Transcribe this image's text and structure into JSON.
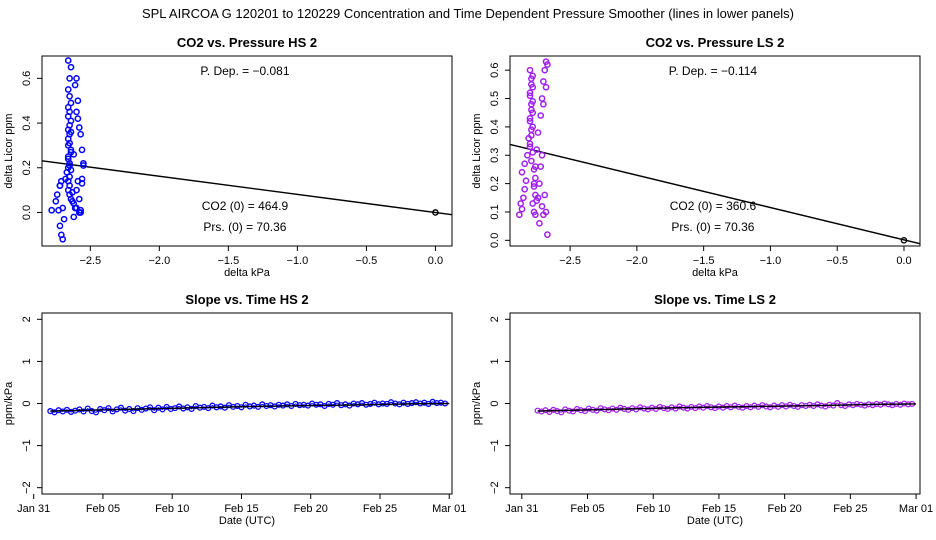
{
  "page": {
    "title": "SPL    AIRCOA G    120201 to 120229    Concentration and Time Dependent Pressure Smoother (lines in lower panels)"
  },
  "colors": {
    "hs": "#0000ff",
    "ls": "#a020f0",
    "fit_line": "#000000"
  },
  "chart_data": [
    {
      "id": "co2-vs-pressure-hs",
      "type": "scatter",
      "title": "CO2 vs. Pressure HS 2",
      "xlabel": "delta kPa",
      "ylabel": "delta Licor ppm",
      "xlim": [
        -2.85,
        0.12
      ],
      "ylim": [
        -0.15,
        0.7
      ],
      "xticks": [
        -2.5,
        -2.0,
        -1.5,
        -1.0,
        -0.5,
        0.0
      ],
      "xtick_labels": [
        "−2.5",
        "−2.0",
        "−1.5",
        "−1.0",
        "−0.5",
        "0.0"
      ],
      "yticks": [
        0.0,
        0.2,
        0.4,
        0.6
      ],
      "ytick_labels": [
        "0.0",
        "0.2",
        "0.4",
        "0.6"
      ],
      "annotations": {
        "p_dep": "P. Dep. =  −0.081",
        "co2_0": "CO2 (0) =  464.9",
        "prs_0": "Prs. (0) =  70.36"
      },
      "fit_line": {
        "x": [
          -2.85,
          0.12
        ],
        "y": [
          0.231,
          -0.01
        ]
      },
      "reference_point": {
        "x": 0.0,
        "y": 0.0
      },
      "color_key": "hs",
      "points": {
        "x": [
          -2.7,
          -2.71,
          -2.72,
          -2.69,
          -2.73,
          -2.7,
          -2.72,
          -2.68,
          -2.67,
          -2.66,
          -2.65,
          -2.66,
          -2.64,
          -2.66,
          -2.66,
          -2.65,
          -2.66,
          -2.65,
          -2.64,
          -2.66,
          -2.65,
          -2.66,
          -2.64,
          -2.65,
          -2.66,
          -2.65,
          -2.64,
          -2.66,
          -2.65,
          -2.66,
          -2.65,
          -2.64,
          -2.63,
          -2.66,
          -2.65,
          -2.64,
          -2.65,
          -2.66,
          -2.64,
          -2.65,
          -2.6,
          -2.61,
          -2.59,
          -2.6,
          -2.59,
          -2.58,
          -2.57,
          -2.56,
          -2.55,
          -2.59,
          -2.6,
          -2.58,
          -2.6,
          -2.57,
          -2.56,
          -2.78,
          -2.75,
          -2.74,
          -2.72,
          -2.71,
          -2.62,
          -2.61,
          -2.58,
          -2.57,
          -2.56,
          -2.55,
          -2.63,
          -2.62,
          -2.64,
          -2.62
        ],
        "y": [
          -0.12,
          -0.1,
          -0.06,
          -0.03,
          0.01,
          0.02,
          0.12,
          0.15,
          0.18,
          0.2,
          0.22,
          0.25,
          0.28,
          0.3,
          0.33,
          0.35,
          0.37,
          0.39,
          0.41,
          0.43,
          0.45,
          0.47,
          0.49,
          0.52,
          0.55,
          0.6,
          0.65,
          0.68,
          0.12,
          0.1,
          0.08,
          0.06,
          0.05,
          0.14,
          0.16,
          0.19,
          0.21,
          0.24,
          0.27,
          0.31,
          0.6,
          0.57,
          0.5,
          0.45,
          0.42,
          0.38,
          0.35,
          0.28,
          0.22,
          0.14,
          0.1,
          0.06,
          0.02,
          0.0,
          0.13,
          0.01,
          0.05,
          0.08,
          0.12,
          0.14,
          0.04,
          0.02,
          0.0,
          0.01,
          0.15,
          0.21,
          0.09,
          -0.02,
          0.36,
          0.26
        ]
      }
    },
    {
      "id": "co2-vs-pressure-ls",
      "type": "scatter",
      "title": "CO2 vs. Pressure LS 2",
      "xlabel": "delta kPa",
      "ylabel": "delta Licor ppm",
      "xlim": [
        -2.95,
        0.12
      ],
      "ylim": [
        -0.02,
        0.65
      ],
      "xticks": [
        -2.5,
        -2.0,
        -1.5,
        -1.0,
        -0.5,
        0.0
      ],
      "xtick_labels": [
        "−2.5",
        "−2.0",
        "−1.5",
        "−1.0",
        "−0.5",
        "0.0"
      ],
      "yticks": [
        0.0,
        0.1,
        0.2,
        0.3,
        0.4,
        0.5,
        0.6
      ],
      "ytick_labels": [
        "0.0",
        "0.1",
        "0.2",
        "0.3",
        "0.4",
        "0.5",
        "0.6"
      ],
      "annotations": {
        "p_dep": "P. Dep. =  −0.114",
        "co2_0": "CO2 (0) =  360.6",
        "prs_0": "Prs. (0) =  70.36"
      },
      "fit_line": {
        "x": [
          -2.95,
          0.12
        ],
        "y": [
          0.338,
          -0.012
        ]
      },
      "reference_point": {
        "x": 0.0,
        "y": 0.0
      },
      "color_key": "ls",
      "points": {
        "x": [
          -2.88,
          -2.86,
          -2.87,
          -2.85,
          -2.84,
          -2.83,
          -2.86,
          -2.84,
          -2.82,
          -2.8,
          -2.81,
          -2.79,
          -2.8,
          -2.78,
          -2.79,
          -2.8,
          -2.78,
          -2.79,
          -2.8,
          -2.78,
          -2.79,
          -2.8,
          -2.78,
          -2.79,
          -2.8,
          -2.78,
          -2.79,
          -2.8,
          -2.78,
          -2.79,
          -2.77,
          -2.76,
          -2.77,
          -2.76,
          -2.78,
          -2.77,
          -2.76,
          -2.75,
          -2.77,
          -2.76,
          -2.75,
          -2.74,
          -2.72,
          -2.71,
          -2.7,
          -2.69,
          -2.68,
          -2.67,
          -2.68,
          -2.7,
          -2.71,
          -2.72,
          -2.73,
          -2.74,
          -2.71,
          -2.7,
          -2.69,
          -2.68,
          -2.67,
          -2.73
        ],
        "y": [
          0.09,
          0.11,
          0.13,
          0.15,
          0.18,
          0.21,
          0.24,
          0.27,
          0.3,
          0.33,
          0.36,
          0.39,
          0.42,
          0.45,
          0.48,
          0.51,
          0.54,
          0.57,
          0.6,
          0.58,
          0.55,
          0.52,
          0.49,
          0.46,
          0.43,
          0.4,
          0.37,
          0.34,
          0.31,
          0.28,
          0.25,
          0.22,
          0.19,
          0.16,
          0.13,
          0.1,
          0.09,
          0.14,
          0.2,
          0.26,
          0.32,
          0.38,
          0.44,
          0.5,
          0.56,
          0.6,
          0.63,
          0.62,
          0.54,
          0.48,
          0.3,
          0.26,
          0.2,
          0.15,
          0.12,
          0.09,
          0.16,
          0.1,
          0.02,
          0.06
        ]
      }
    },
    {
      "id": "slope-vs-time-hs",
      "type": "line",
      "title": "Slope vs. Time HS 2",
      "xlabel": "Date (UTC)",
      "ylabel": "ppm/kPa",
      "xlim": [
        0.6,
        30.2
      ],
      "ylim": [
        -2.15,
        2.15
      ],
      "xticks": [
        0,
        5,
        10,
        15,
        20,
        25,
        30
      ],
      "xtick_labels": [
        "Jan 31",
        "Feb 05",
        "Feb 10",
        "Feb 15",
        "Feb 20",
        "Feb 25",
        "Mar 01"
      ],
      "yticks": [
        -2,
        -1,
        0,
        1,
        2
      ],
      "ytick_labels": [
        "−2",
        "−1",
        "0",
        "1",
        "2"
      ],
      "color_key": "hs",
      "smoother": {
        "x": [
          1.2,
          4,
          8,
          12,
          16,
          20,
          24,
          27,
          30
        ],
        "y": [
          -0.18,
          -0.16,
          -0.13,
          -0.1,
          -0.07,
          -0.05,
          -0.03,
          -0.01,
          0.0
        ]
      },
      "points": {
        "x": [
          1.2,
          1.5,
          1.8,
          2.1,
          2.4,
          2.7,
          3.0,
          3.3,
          3.6,
          3.9,
          4.2,
          4.5,
          4.8,
          5.1,
          5.4,
          5.7,
          6.0,
          6.3,
          6.6,
          6.9,
          7.2,
          7.5,
          7.8,
          8.1,
          8.4,
          8.7,
          9.0,
          9.3,
          9.6,
          9.9,
          10.2,
          10.5,
          10.8,
          11.1,
          11.4,
          11.7,
          12.0,
          12.3,
          12.6,
          12.9,
          13.2,
          13.5,
          13.8,
          14.1,
          14.4,
          14.7,
          15.0,
          15.3,
          15.6,
          15.9,
          16.2,
          16.5,
          16.8,
          17.1,
          17.4,
          17.7,
          18.0,
          18.3,
          18.6,
          18.9,
          19.2,
          19.5,
          19.8,
          20.1,
          20.4,
          20.7,
          21.0,
          21.3,
          21.6,
          21.9,
          22.2,
          22.5,
          22.8,
          23.1,
          23.4,
          23.7,
          24.0,
          24.3,
          24.6,
          24.9,
          25.2,
          25.5,
          25.8,
          26.1,
          26.4,
          26.7,
          27.0,
          27.3,
          27.6,
          27.9,
          28.2,
          28.5,
          28.8,
          29.1,
          29.4,
          29.7
        ],
        "y": [
          -0.18,
          -0.21,
          -0.16,
          -0.19,
          -0.15,
          -0.2,
          -0.17,
          -0.14,
          -0.19,
          -0.12,
          -0.18,
          -0.21,
          -0.13,
          -0.16,
          -0.11,
          -0.19,
          -0.14,
          -0.1,
          -0.17,
          -0.13,
          -0.18,
          -0.11,
          -0.15,
          -0.12,
          -0.09,
          -0.16,
          -0.1,
          -0.14,
          -0.08,
          -0.13,
          -0.11,
          -0.07,
          -0.12,
          -0.09,
          -0.13,
          -0.06,
          -0.1,
          -0.08,
          -0.11,
          -0.05,
          -0.09,
          -0.07,
          -0.1,
          -0.04,
          -0.08,
          -0.06,
          -0.09,
          -0.03,
          -0.07,
          -0.05,
          -0.08,
          -0.02,
          -0.06,
          -0.04,
          -0.07,
          -0.03,
          -0.05,
          -0.02,
          -0.06,
          -0.01,
          -0.04,
          -0.03,
          -0.05,
          0.0,
          -0.03,
          -0.02,
          -0.06,
          -0.01,
          -0.03,
          0.01,
          -0.04,
          -0.02,
          -0.05,
          0.0,
          -0.02,
          0.01,
          -0.03,
          -0.01,
          0.02,
          -0.02,
          0.0,
          -0.01,
          0.03,
          0.0,
          -0.02,
          0.02,
          -0.01,
          0.01,
          0.03,
          0.0,
          0.02,
          -0.01,
          0.04,
          0.01,
          0.02,
          0.0
        ]
      }
    },
    {
      "id": "slope-vs-time-ls",
      "type": "line",
      "title": "Slope vs. Time LS 2",
      "xlabel": "Date (UTC)",
      "ylabel": "ppm/kPa",
      "xlim": [
        -0.9,
        30.3
      ],
      "ylim": [
        -2.15,
        2.15
      ],
      "xticks": [
        0,
        5,
        10,
        15,
        20,
        25,
        30
      ],
      "xtick_labels": [
        "Jan 31",
        "Feb 05",
        "Feb 10",
        "Feb 15",
        "Feb 20",
        "Feb 25",
        "Mar 01"
      ],
      "yticks": [
        -2,
        -1,
        0,
        1,
        2
      ],
      "ytick_labels": [
        "−2",
        "−1",
        "0",
        "1",
        "2"
      ],
      "color_key": "ls",
      "smoother": {
        "x": [
          1.2,
          4,
          8,
          12,
          16,
          20,
          24,
          27,
          30
        ],
        "y": [
          -0.18,
          -0.16,
          -0.13,
          -0.1,
          -0.08,
          -0.06,
          -0.04,
          -0.02,
          -0.01
        ]
      },
      "points": {
        "x": [
          1.2,
          1.5,
          1.8,
          2.1,
          2.4,
          2.7,
          3.0,
          3.3,
          3.6,
          3.9,
          4.2,
          4.5,
          4.8,
          5.1,
          5.4,
          5.7,
          6.0,
          6.3,
          6.6,
          6.9,
          7.2,
          7.5,
          7.8,
          8.1,
          8.4,
          8.7,
          9.0,
          9.3,
          9.6,
          9.9,
          10.2,
          10.5,
          10.8,
          11.1,
          11.4,
          11.7,
          12.0,
          12.3,
          12.6,
          12.9,
          13.2,
          13.5,
          13.8,
          14.1,
          14.4,
          14.7,
          15.0,
          15.3,
          15.6,
          15.9,
          16.2,
          16.5,
          16.8,
          17.1,
          17.4,
          17.7,
          18.0,
          18.3,
          18.6,
          18.9,
          19.2,
          19.5,
          19.8,
          20.1,
          20.4,
          20.7,
          21.0,
          21.3,
          21.6,
          21.9,
          22.2,
          22.5,
          22.8,
          23.1,
          23.4,
          23.7,
          24.0,
          24.3,
          24.6,
          24.9,
          25.2,
          25.5,
          25.8,
          26.1,
          26.4,
          26.7,
          27.0,
          27.3,
          27.6,
          27.9,
          28.2,
          28.5,
          28.8,
          29.1,
          29.4,
          29.7
        ],
        "y": [
          -0.17,
          -0.19,
          -0.16,
          -0.2,
          -0.15,
          -0.18,
          -0.21,
          -0.14,
          -0.17,
          -0.19,
          -0.13,
          -0.16,
          -0.18,
          -0.12,
          -0.15,
          -0.17,
          -0.11,
          -0.14,
          -0.16,
          -0.12,
          -0.15,
          -0.1,
          -0.13,
          -0.15,
          -0.11,
          -0.14,
          -0.09,
          -0.12,
          -0.14,
          -0.1,
          -0.13,
          -0.08,
          -0.11,
          -0.13,
          -0.09,
          -0.12,
          -0.07,
          -0.1,
          -0.12,
          -0.08,
          -0.11,
          -0.07,
          -0.1,
          -0.06,
          -0.09,
          -0.11,
          -0.07,
          -0.1,
          -0.06,
          -0.09,
          -0.05,
          -0.08,
          -0.1,
          -0.06,
          -0.09,
          -0.05,
          -0.08,
          -0.04,
          -0.07,
          -0.09,
          -0.05,
          -0.08,
          -0.04,
          -0.07,
          -0.03,
          -0.06,
          -0.08,
          -0.04,
          -0.06,
          -0.03,
          -0.06,
          -0.02,
          -0.05,
          -0.07,
          -0.03,
          -0.05,
          0.01,
          -0.04,
          -0.06,
          -0.02,
          -0.04,
          -0.01,
          -0.03,
          -0.05,
          -0.02,
          -0.04,
          -0.01,
          -0.03,
          0.0,
          -0.02,
          -0.04,
          -0.01,
          -0.03,
          0.0,
          -0.02,
          -0.01
        ]
      }
    }
  ]
}
